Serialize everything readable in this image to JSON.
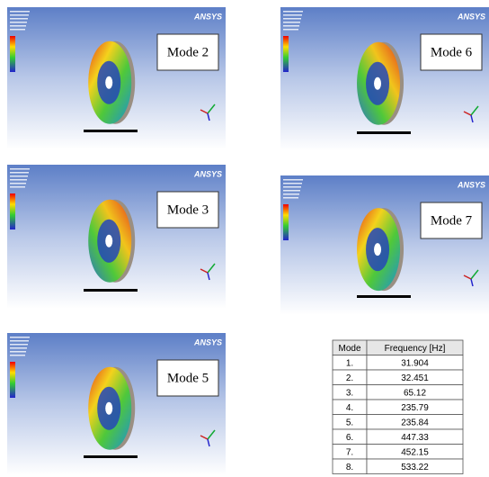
{
  "panels": [
    {
      "label": "Mode 2",
      "brand": "ANSYS"
    },
    {
      "label": "Mode 6",
      "brand": "ANSYS"
    },
    {
      "label": "Mode 3",
      "brand": "ANSYS"
    },
    {
      "label": "Mode 7",
      "brand": "ANSYS"
    },
    {
      "label": "Mode 5",
      "brand": "ANSYS"
    }
  ],
  "table": {
    "header": [
      "Mode",
      "Frequency [Hz]"
    ],
    "rows": [
      [
        "1.",
        "31.904"
      ],
      [
        "2.",
        "32.451"
      ],
      [
        "3.",
        "65.12"
      ],
      [
        "4.",
        "235.79"
      ],
      [
        "5.",
        "235.84"
      ],
      [
        "6.",
        "447.33"
      ],
      [
        "7.",
        "452.15"
      ],
      [
        "8.",
        "533.22"
      ]
    ]
  }
}
